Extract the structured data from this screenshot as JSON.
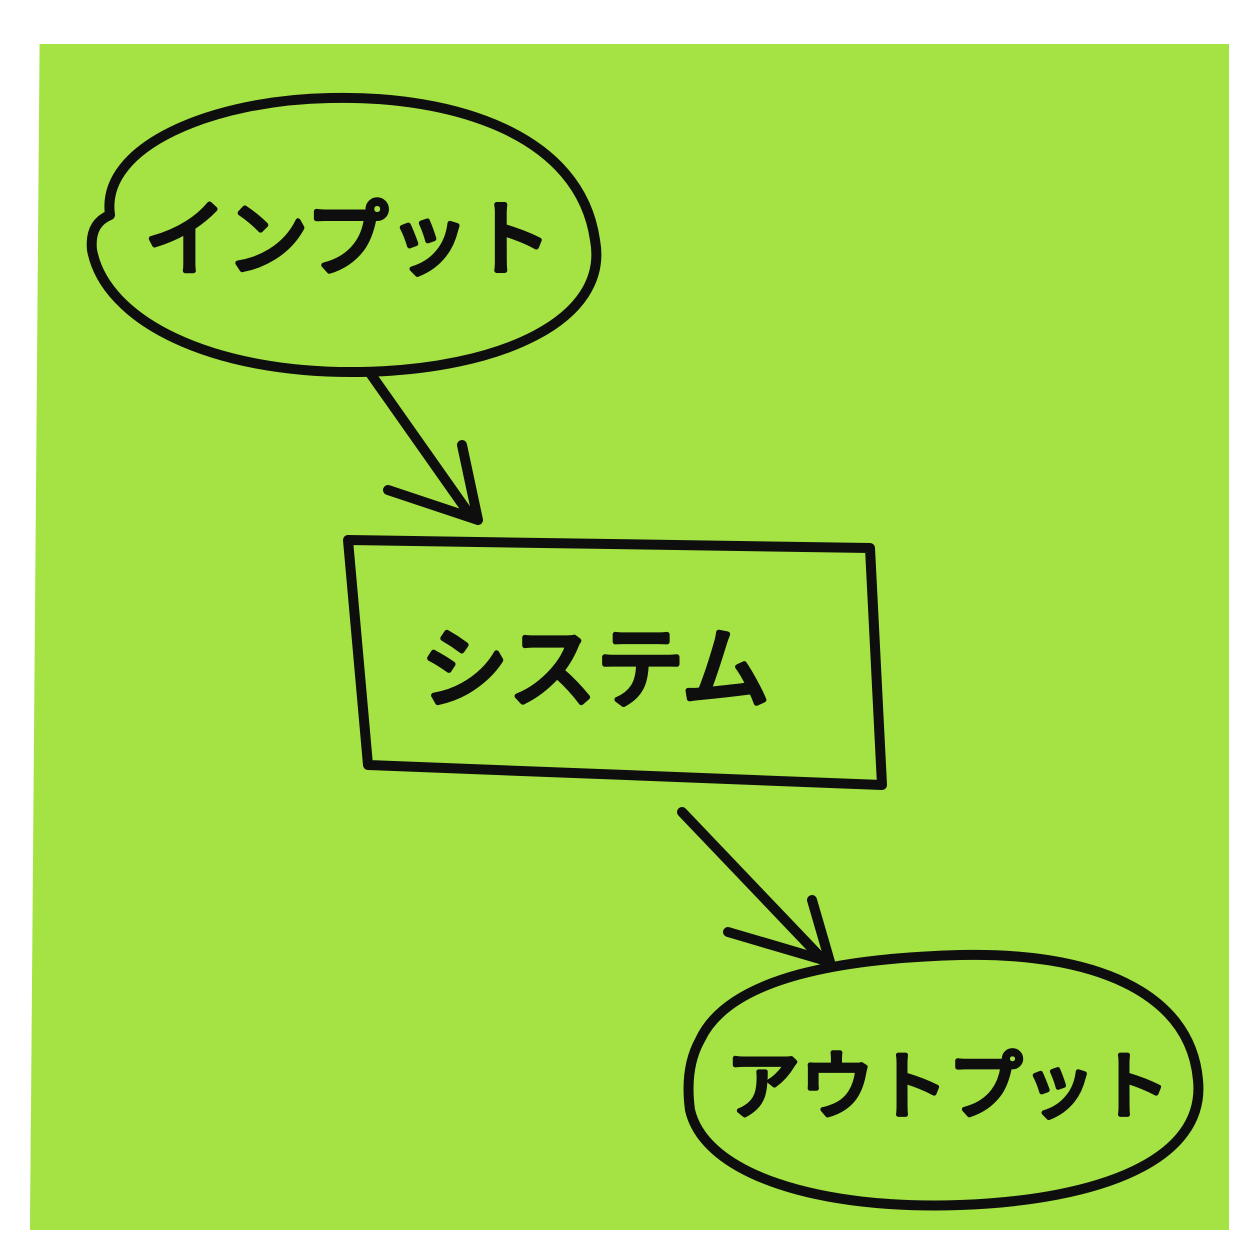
{
  "colors": {
    "note_background": "#a5e344",
    "ink": "#0e0e0e",
    "page_background": "#ffffff"
  },
  "diagram": {
    "nodes": [
      {
        "id": "input",
        "shape": "ellipse",
        "label": "インプット"
      },
      {
        "id": "system",
        "shape": "rectangle",
        "label": "システム"
      },
      {
        "id": "output",
        "shape": "ellipse",
        "label": "アウトプット"
      }
    ],
    "edges": [
      {
        "from": "input",
        "to": "system"
      },
      {
        "from": "system",
        "to": "output"
      }
    ]
  }
}
